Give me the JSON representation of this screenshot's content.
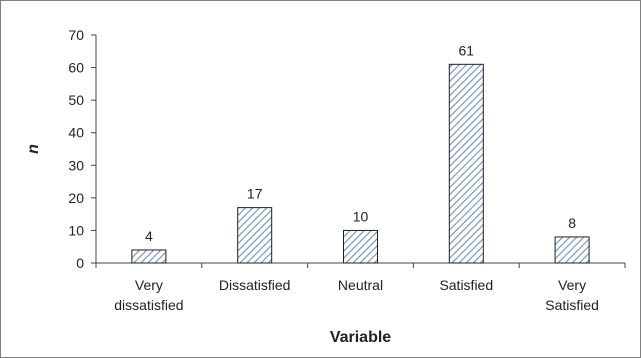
{
  "chart_data": {
    "type": "bar",
    "title": "",
    "xlabel": "Variable",
    "ylabel": "n",
    "ylim": [
      0,
      70
    ],
    "yticks": [
      0,
      10,
      20,
      30,
      40,
      50,
      60,
      70
    ],
    "categories": [
      [
        "Very",
        "dissatisfied"
      ],
      [
        "Dissatisfied"
      ],
      [
        "Neutral"
      ],
      [
        "Satisfied"
      ],
      [
        "Very",
        "Satisfied"
      ]
    ],
    "values": [
      4,
      17,
      10,
      61,
      8
    ],
    "data_labels": [
      "4",
      "17",
      "10",
      "61",
      "8"
    ],
    "bar_fill": "diagonal-hatch",
    "bar_color": "#9db4d4",
    "bar_stroke": "#1f1f1f",
    "grid": false,
    "legend": "none"
  }
}
